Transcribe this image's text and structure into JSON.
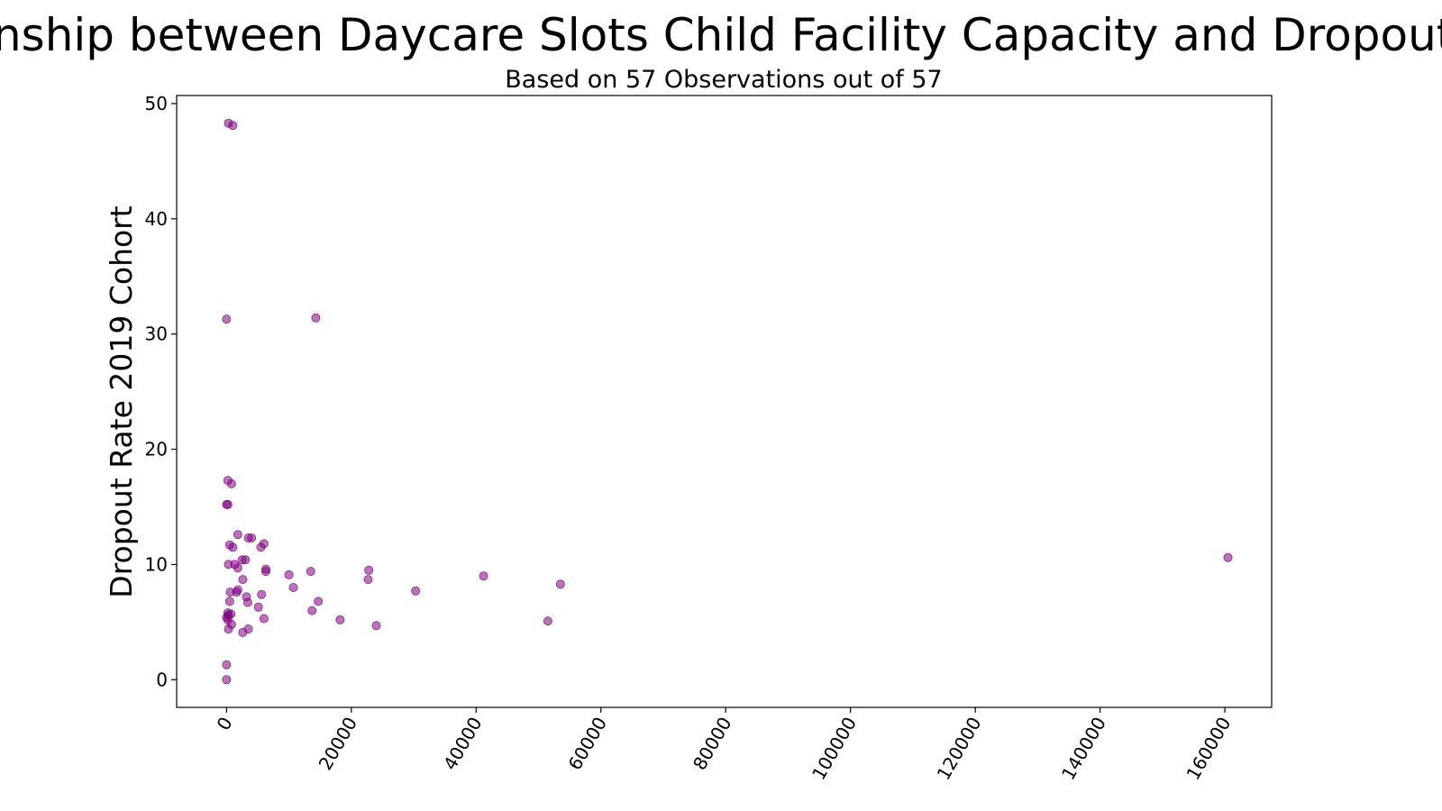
{
  "chart_data": {
    "type": "scatter",
    "title": "Relationship between Daycare Slots Child Facility Capacity and Dropout Rate",
    "subtitle": "Based on 57 Observations out of 57",
    "xlabel": "",
    "ylabel": "Dropout Rate 2019 Cohort",
    "xlim": [
      -8000,
      167500
    ],
    "ylim": [
      -2.4,
      50.7
    ],
    "xticks": [
      0,
      20000,
      40000,
      60000,
      80000,
      100000,
      120000,
      140000,
      160000
    ],
    "yticks": [
      0,
      10,
      20,
      30,
      40,
      50
    ],
    "grid": false,
    "marker_color": "#800080",
    "marker_alpha": 0.55,
    "series": [
      {
        "points": [
          [
            300,
            48.3
          ],
          [
            1000,
            48.1
          ],
          [
            0,
            31.3
          ],
          [
            14300,
            31.4
          ],
          [
            200,
            17.3
          ],
          [
            800,
            17.0
          ],
          [
            0,
            15.2
          ],
          [
            200,
            15.2
          ],
          [
            1800,
            12.6
          ],
          [
            3500,
            12.3
          ],
          [
            4000,
            12.3
          ],
          [
            6000,
            11.8
          ],
          [
            500,
            11.7
          ],
          [
            1000,
            11.5
          ],
          [
            5500,
            11.5
          ],
          [
            2500,
            10.4
          ],
          [
            3000,
            10.4
          ],
          [
            160500,
            10.6
          ],
          [
            300,
            10.0
          ],
          [
            1300,
            10.0
          ],
          [
            1800,
            9.7
          ],
          [
            6300,
            9.6
          ],
          [
            6300,
            9.4
          ],
          [
            13500,
            9.4
          ],
          [
            22800,
            9.5
          ],
          [
            10000,
            9.1
          ],
          [
            41200,
            9.0
          ],
          [
            2600,
            8.7
          ],
          [
            22700,
            8.7
          ],
          [
            53500,
            8.3
          ],
          [
            10700,
            8.0
          ],
          [
            1800,
            7.8
          ],
          [
            1600,
            7.6
          ],
          [
            600,
            7.6
          ],
          [
            30300,
            7.7
          ],
          [
            5600,
            7.4
          ],
          [
            3200,
            7.2
          ],
          [
            14700,
            6.8
          ],
          [
            3400,
            6.7
          ],
          [
            500,
            6.8
          ],
          [
            5100,
            6.3
          ],
          [
            13700,
            6.0
          ],
          [
            200,
            5.8
          ],
          [
            700,
            5.7
          ],
          [
            300,
            5.6
          ],
          [
            0,
            5.4
          ],
          [
            200,
            5.2
          ],
          [
            6000,
            5.3
          ],
          [
            18200,
            5.2
          ],
          [
            51500,
            5.1
          ],
          [
            800,
            4.8
          ],
          [
            24000,
            4.7
          ],
          [
            300,
            4.4
          ],
          [
            3500,
            4.4
          ],
          [
            2600,
            4.1
          ],
          [
            0,
            1.3
          ],
          [
            0,
            0.0
          ]
        ]
      }
    ]
  }
}
